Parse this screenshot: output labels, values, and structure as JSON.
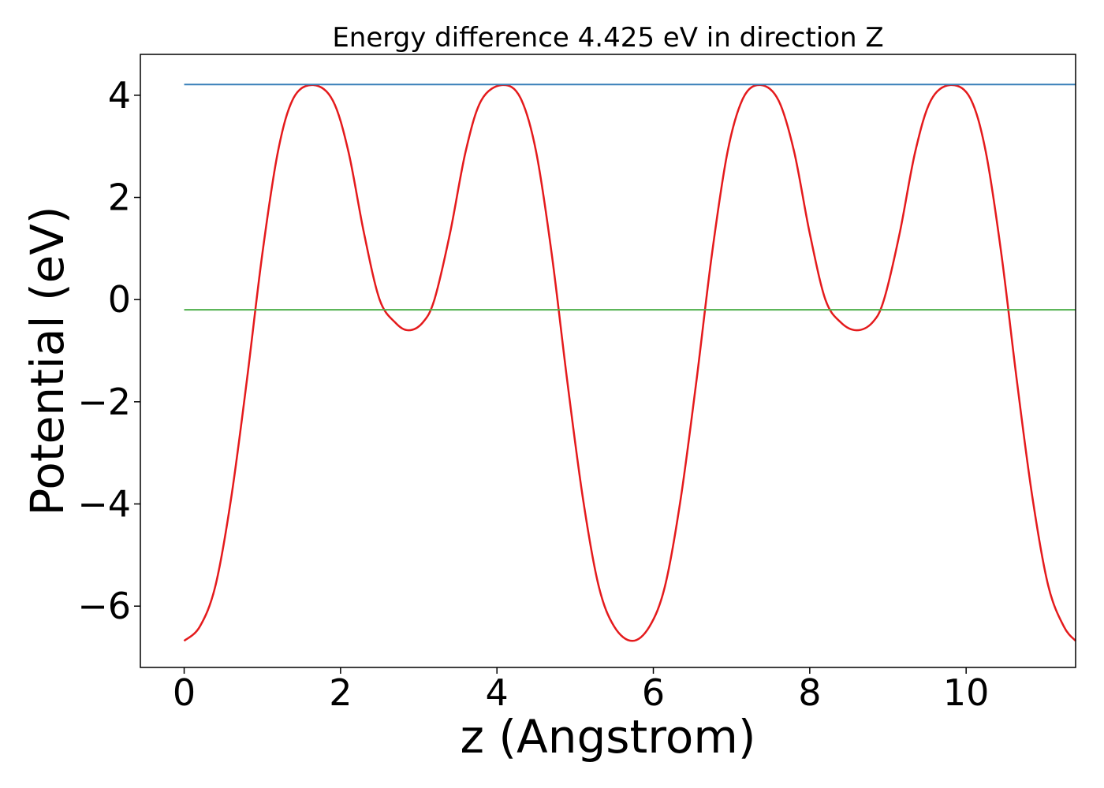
{
  "chart_data": {
    "type": "line",
    "title": "Energy difference 4.425 eV in direction Z",
    "xlabel": "z (Angstrom)",
    "ylabel": "Potential (eV)",
    "xlim": [
      -0.56,
      11.4
    ],
    "ylim": [
      -7.2,
      4.8
    ],
    "xticks": [
      0,
      2,
      4,
      6,
      8,
      10
    ],
    "xtick_labels": [
      "0",
      "2",
      "4",
      "6",
      "8",
      "10"
    ],
    "yticks": [
      -6,
      -4,
      -2,
      0,
      2,
      4
    ],
    "ytick_labels": [
      "−6",
      "−4",
      "−2",
      "0",
      "2",
      "4"
    ],
    "grid": false,
    "colors": {
      "potential": "#e41a1c",
      "upper_level": "#377eb8",
      "lower_level": "#4daf4a"
    },
    "series": [
      {
        "color": "#e41a1c",
        "x": [
          0,
          0.2,
          0.4,
          0.6,
          0.8,
          1.0,
          1.2,
          1.4,
          1.65,
          1.9,
          2.1,
          2.3,
          2.5,
          2.7,
          2.87,
          3.05,
          3.2,
          3.4,
          3.6,
          3.8,
          4.07,
          4.3,
          4.5,
          4.7,
          4.9,
          5.1,
          5.3,
          5.5,
          5.73,
          5.95,
          6.15,
          6.35,
          6.55,
          6.75,
          6.95,
          7.15,
          7.37,
          7.6,
          7.8,
          8.0,
          8.2,
          8.4,
          8.6,
          8.8,
          8.95,
          9.15,
          9.35,
          9.55,
          9.8,
          10.05,
          10.25,
          10.45,
          10.65,
          10.85,
          11.05,
          11.25,
          11.4
        ],
        "y": [
          -6.68,
          -6.4,
          -5.6,
          -3.9,
          -1.6,
          0.9,
          2.9,
          3.95,
          4.2,
          3.9,
          2.9,
          1.3,
          0.0,
          -0.45,
          -0.6,
          -0.45,
          0.0,
          1.3,
          2.9,
          3.9,
          4.2,
          3.95,
          2.9,
          0.9,
          -1.6,
          -3.9,
          -5.6,
          -6.4,
          -6.68,
          -6.4,
          -5.6,
          -3.9,
          -1.6,
          0.9,
          2.9,
          3.95,
          4.2,
          3.9,
          2.9,
          1.3,
          0.0,
          -0.45,
          -0.6,
          -0.45,
          0.0,
          1.3,
          2.9,
          3.9,
          4.2,
          3.95,
          2.9,
          0.9,
          -1.6,
          -3.9,
          -5.6,
          -6.4,
          -6.68
        ]
      },
      {
        "color": "#377eb8",
        "x": [
          0,
          11.4
        ],
        "y": [
          4.21,
          4.21
        ]
      },
      {
        "color": "#4daf4a",
        "x": [
          0,
          11.4
        ],
        "y": [
          -0.2,
          -0.2
        ]
      }
    ]
  }
}
